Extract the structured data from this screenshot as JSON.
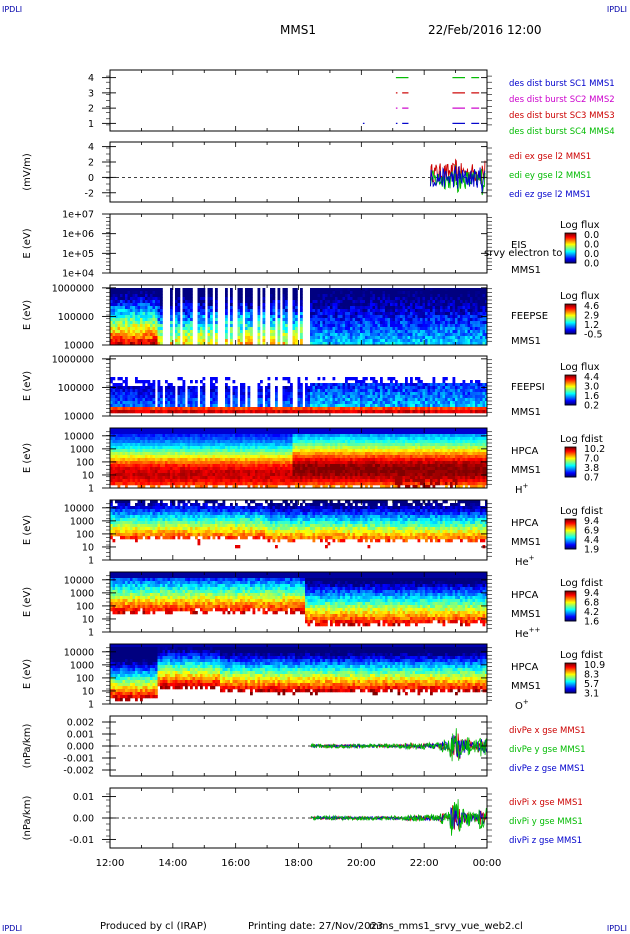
{
  "corner_labels": {
    "tl": "IPDLI",
    "tr": "IPDLI",
    "bl": "IPDLI",
    "br": "IPDLI"
  },
  "header": {
    "spacecraft": "MMS1",
    "date": "22/Feb/2016 12:00"
  },
  "footer": {
    "produced_by": "Produced by cl (IRAP)",
    "printing_date": "Printing date: 27/Nov/2023",
    "product": "mms_mms1_srvy_vue_web2.cl"
  },
  "time_axis": {
    "ticks": [
      "12:00",
      "14:00",
      "16:00",
      "18:00",
      "20:00",
      "22:00",
      "00:00"
    ]
  },
  "chart_data": [
    {
      "type": "scatter",
      "name": "burst",
      "ylabel": "",
      "ylim": [
        0.5,
        4.5
      ],
      "yticks": [
        "1",
        "2",
        "3",
        "4"
      ],
      "xlim": [
        12,
        24
      ],
      "legend": [
        {
          "label": "des dist burst SC1 MMS1",
          "color": "#0000cc"
        },
        {
          "label": "des dist burst SC2 MMS2",
          "color": "#cc00cc"
        },
        {
          "label": "des dist burst SC3 MMS3",
          "color": "#cc0000"
        },
        {
          "label": "des dist burst SC4 MMS4",
          "color": "#00bb00"
        }
      ],
      "series": [
        {
          "level": 4,
          "color": "#00bb00",
          "intervals": [
            [
              21.1,
              21.5
            ],
            [
              22.9,
              23.3
            ],
            [
              23.5,
              23.75
            ]
          ]
        },
        {
          "level": 3,
          "color": "#cc0000",
          "intervals": [
            [
              21.1,
              21.15
            ],
            [
              21.3,
              21.5
            ],
            [
              22.9,
              23.3
            ],
            [
              23.5,
              23.75
            ]
          ]
        },
        {
          "level": 2,
          "color": "#cc00cc",
          "intervals": [
            [
              21.1,
              21.15
            ],
            [
              21.3,
              21.5
            ],
            [
              22.9,
              23.3
            ],
            [
              23.5,
              23.75
            ]
          ]
        },
        {
          "level": 1,
          "color": "#0000cc",
          "intervals": [
            [
              20.05,
              20.1
            ],
            [
              21.1,
              21.15
            ],
            [
              21.3,
              21.5
            ],
            [
              22.9,
              23.3
            ],
            [
              23.5,
              23.75
            ]
          ]
        }
      ]
    },
    {
      "type": "line",
      "name": "edi",
      "ylabel": "(mV/m)",
      "ylim": [
        -3.2,
        4.6
      ],
      "yticks": [
        "4",
        "2",
        "0",
        "-2"
      ],
      "xlim": [
        12,
        24
      ],
      "data_start": 22.2,
      "zero_line": true,
      "legend": [
        {
          "label": "edi ex gse l2 MMS1",
          "color": "#cc0000"
        },
        {
          "label": "edi ey gse l2 MMS1",
          "color": "#00bb00"
        },
        {
          "label": "edi ez gse l2 MMS1",
          "color": "#0000cc"
        }
      ]
    },
    {
      "type": "heatmap",
      "name": "eis",
      "ylabel": "E (eV)",
      "ylim": [
        4,
        7
      ],
      "yticks": [
        "1e+07",
        "1e+06",
        "1e+05",
        "1e+04"
      ],
      "xlim": [
        12,
        24
      ],
      "labels": [
        "EIS",
        "MMS1"
      ],
      "overlay_text": "srvy electron to",
      "colorbar": {
        "title": "Log flux",
        "ticks": [
          "0.0",
          "0.0",
          "0.0",
          "0.0"
        ]
      }
    },
    {
      "type": "heatmap",
      "name": "feeps-e",
      "ylabel": "E (eV)",
      "ylim": [
        4,
        6.1
      ],
      "yticks": [
        "1000000",
        "100000",
        "10000"
      ],
      "xlim": [
        12,
        24
      ],
      "labels": [
        "FEEPSE",
        "MMS1"
      ],
      "colorbar": {
        "title": "Log flux",
        "ticks": [
          "4.6",
          "2.9",
          "1.2",
          "-0.5"
        ]
      }
    },
    {
      "type": "heatmap",
      "name": "feeps-i",
      "ylabel": "E (eV)",
      "ylim": [
        4,
        6.1
      ],
      "yticks": [
        "1000000",
        "100000",
        "10000"
      ],
      "xlim": [
        12,
        24
      ],
      "labels": [
        "FEEPSI",
        "MMS1"
      ],
      "colorbar": {
        "title": "Log flux",
        "ticks": [
          "4.4",
          "3.0",
          "1.6",
          "0.2"
        ]
      }
    },
    {
      "type": "heatmap",
      "name": "hpca-h",
      "ylabel": "E (eV)",
      "ylim": [
        0,
        4.6
      ],
      "yticks": [
        "10000",
        "1000",
        "100",
        "10",
        "1"
      ],
      "xlim": [
        12,
        24
      ],
      "labels": [
        "HPCA",
        "MMS1"
      ],
      "species": "H",
      "species_sup": "+",
      "colorbar": {
        "title": "Log fdist",
        "ticks": [
          "10.2",
          "7.0",
          "3.8",
          "0.7"
        ]
      }
    },
    {
      "type": "heatmap",
      "name": "hpca-he",
      "ylabel": "E (eV)",
      "ylim": [
        0,
        4.6
      ],
      "yticks": [
        "10000",
        "1000",
        "100",
        "10",
        "1"
      ],
      "xlim": [
        12,
        24
      ],
      "labels": [
        "HPCA",
        "MMS1"
      ],
      "species": "He",
      "species_sup": "+",
      "colorbar": {
        "title": "Log fdist",
        "ticks": [
          "9.4",
          "6.9",
          "4.4",
          "1.9"
        ]
      }
    },
    {
      "type": "heatmap",
      "name": "hpca-he2",
      "ylabel": "E (eV)",
      "ylim": [
        0,
        4.6
      ],
      "yticks": [
        "10000",
        "1000",
        "100",
        "10",
        "1"
      ],
      "xlim": [
        12,
        24
      ],
      "labels": [
        "HPCA",
        "MMS1"
      ],
      "species": "He",
      "species_sup": "++",
      "colorbar": {
        "title": "Log fdist",
        "ticks": [
          "9.4",
          "6.8",
          "4.2",
          "1.6"
        ]
      }
    },
    {
      "type": "heatmap",
      "name": "hpca-o",
      "ylabel": "E (eV)",
      "ylim": [
        0,
        4.6
      ],
      "yticks": [
        "10000",
        "1000",
        "100",
        "10",
        "1"
      ],
      "xlim": [
        12,
        24
      ],
      "labels": [
        "HPCA",
        "MMS1"
      ],
      "species": "O",
      "species_sup": "+",
      "colorbar": {
        "title": "Log fdist",
        "ticks": [
          "10.9",
          "8.3",
          "5.7",
          "3.1"
        ]
      }
    },
    {
      "type": "line",
      "name": "divpe",
      "ylabel": "(nPa/km)",
      "ylim": [
        -0.0025,
        0.0025
      ],
      "yticks": [
        "0.002",
        "0.001",
        "0.000",
        "-0.001",
        "-0.002"
      ],
      "xlim": [
        12,
        24
      ],
      "data_start": 18.4,
      "zero_line": true,
      "legend": [
        {
          "label": "divPe x gse MMS1",
          "color": "#cc0000"
        },
        {
          "label": "divPe y gse MMS1",
          "color": "#00bb00"
        },
        {
          "label": "divPe z gse MMS1",
          "color": "#0000cc"
        }
      ]
    },
    {
      "type": "line",
      "name": "divpi",
      "ylabel": "(nPa/km)",
      "ylim": [
        -0.014,
        0.014
      ],
      "yticks": [
        "0.01",
        "0.00",
        "-0.01"
      ],
      "xlim": [
        12,
        24
      ],
      "data_start": 18.4,
      "zero_line": true,
      "legend": [
        {
          "label": "divPi x gse MMS1",
          "color": "#cc0000"
        },
        {
          "label": "divPi y gse MMS1",
          "color": "#00bb00"
        },
        {
          "label": "divPi z gse MMS1",
          "color": "#0000cc"
        }
      ]
    }
  ]
}
